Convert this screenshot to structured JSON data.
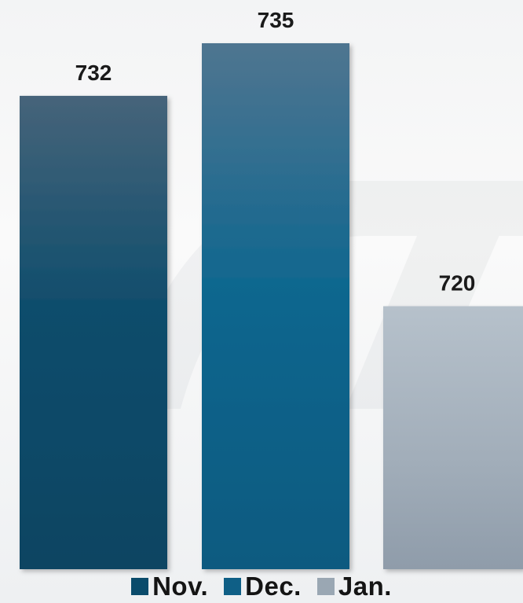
{
  "chart_data": {
    "type": "bar",
    "categories": [
      "Nov.",
      "Dec.",
      "Jan."
    ],
    "values": [
      732,
      735,
      720
    ],
    "value_labels": [
      "732",
      "735",
      "720"
    ],
    "title": "",
    "xlabel": "",
    "ylabel": "",
    "ylim": [
      705,
      737
    ],
    "grid": false,
    "legend_position": "bottom",
    "colors": [
      "#0a4b6b",
      "#0f5f86",
      "#9aa7b3"
    ]
  },
  "legend": {
    "items": [
      {
        "label": "Nov.",
        "color": "#0a4b6b"
      },
      {
        "label": "Dec.",
        "color": "#0f5f86"
      },
      {
        "label": "Jan.",
        "color": "#9aa7b3"
      }
    ]
  }
}
